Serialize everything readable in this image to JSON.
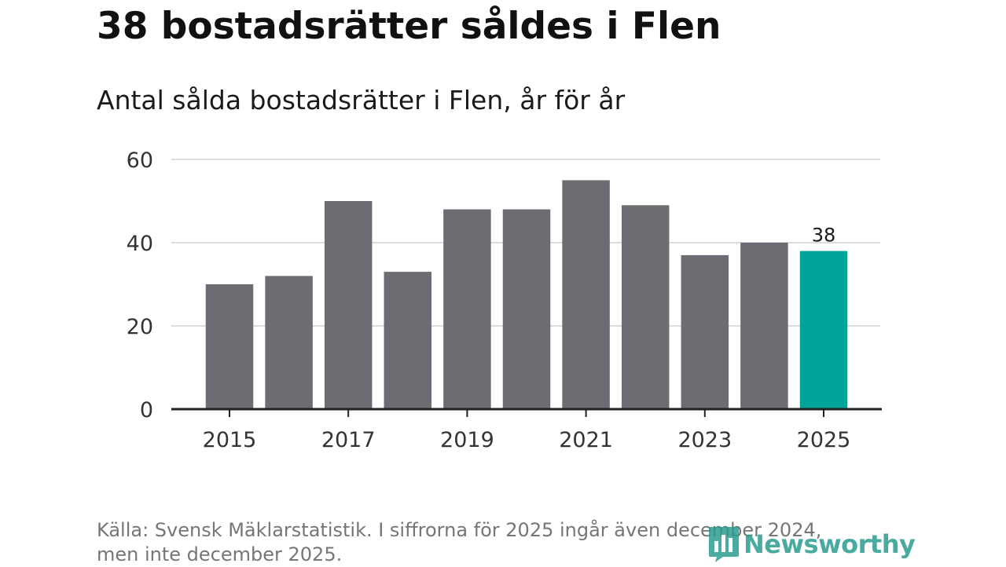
{
  "title": "38 bostadsrätter såldes i Flen",
  "subtitle": "Antal sålda bostadsrätter i Flen, år för år",
  "source": {
    "line1": "Källa: Svensk Mäklarstatistik. I siffrorna för 2025 ingår även december 2024,",
    "line2": "men inte december 2025."
  },
  "logo": {
    "text": "Newsworthy",
    "icon": "newsworthy-logo-icon"
  },
  "colors": {
    "bar": "#6d6c73",
    "highlight": "#00a398",
    "grid": "#dcdcdc",
    "axis": "#222222",
    "text": "#333333",
    "brand": "#2a9d8f"
  },
  "chart_data": {
    "type": "bar",
    "title": "38 bostadsrätter såldes i Flen",
    "subtitle": "Antal sålda bostadsrätter i Flen, år för år",
    "xlabel": "",
    "ylabel": "",
    "categories": [
      "2015",
      "2016",
      "2017",
      "2018",
      "2019",
      "2020",
      "2021",
      "2022",
      "2023",
      "2024",
      "2025"
    ],
    "values": [
      30,
      32,
      50,
      33,
      48,
      48,
      55,
      49,
      37,
      40,
      38
    ],
    "highlight_index": 10,
    "x_tick_labels": [
      "2015",
      "2017",
      "2019",
      "2021",
      "2023",
      "2025"
    ],
    "y_ticks": [
      0,
      20,
      40,
      60
    ],
    "ylim": [
      0,
      60
    ],
    "grid": true,
    "annotations": [
      {
        "category": "2025",
        "label": "38"
      }
    ]
  }
}
